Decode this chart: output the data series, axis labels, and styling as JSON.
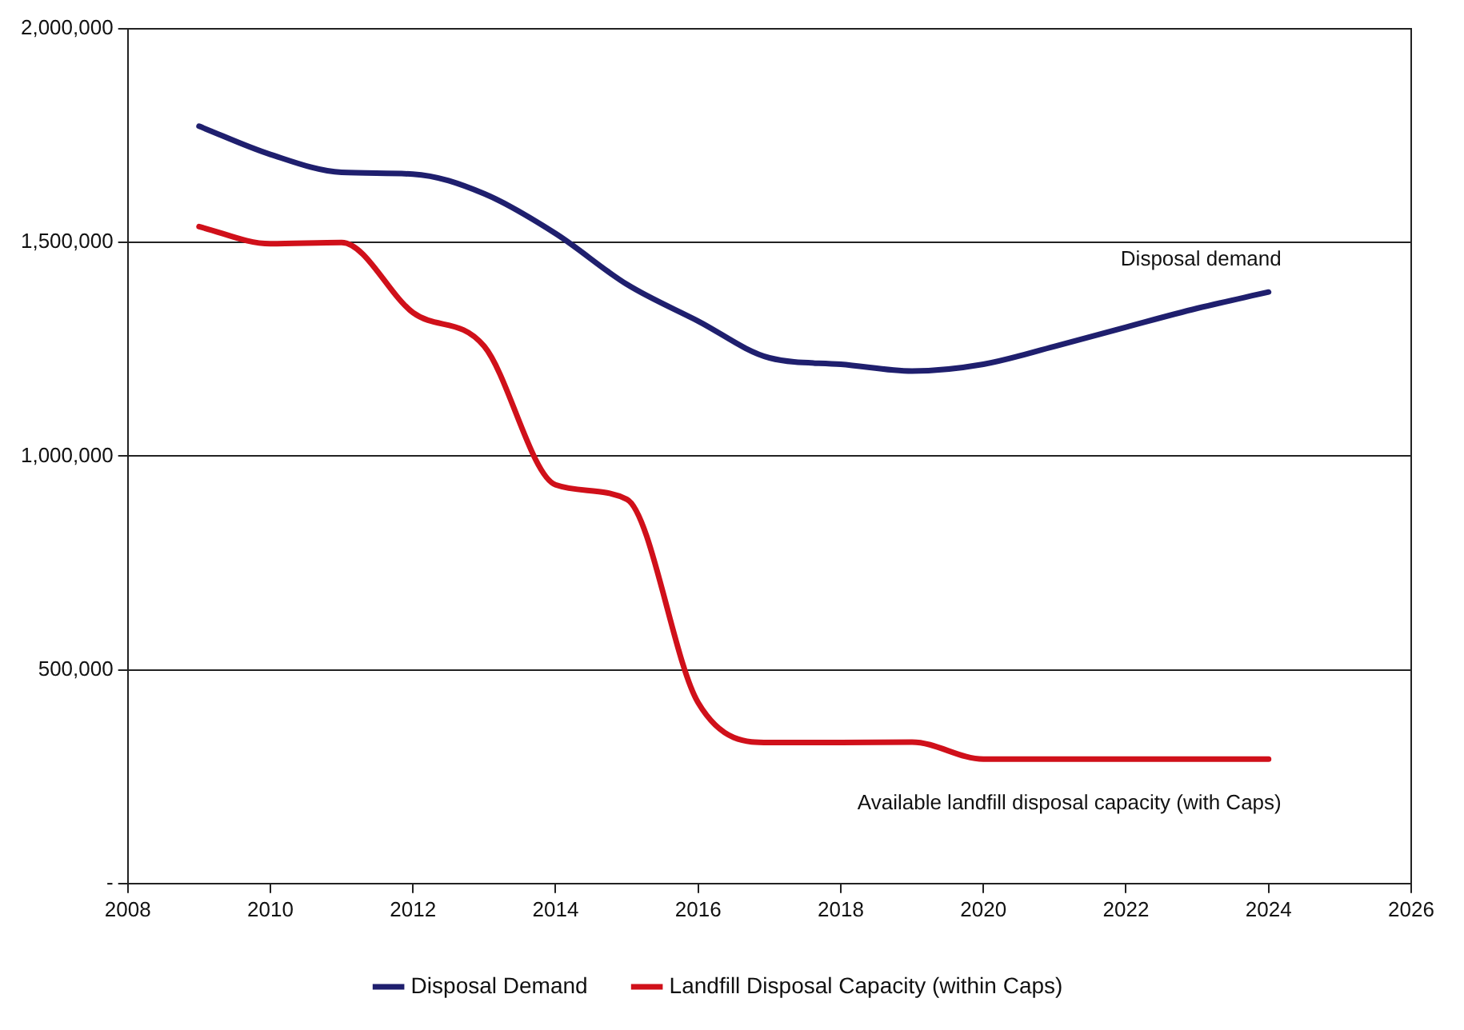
{
  "chart_data": {
    "type": "line",
    "x": [
      2009,
      2010,
      2011,
      2012,
      2013,
      2014,
      2015,
      2016,
      2017,
      2018,
      2019,
      2020,
      2021,
      2022,
      2023,
      2024
    ],
    "series": [
      {
        "name": "Disposal Demand",
        "color": "#1f1f6e",
        "values": [
          1772000,
          1706000,
          1664000,
          1660000,
          1614000,
          1521000,
          1402000,
          1316000,
          1230000,
          1215000,
          1199000,
          1215000,
          1257000,
          1302000,
          1346000,
          1384000
        ]
      },
      {
        "name": "Landfill Disposal Capacity (within Caps)",
        "color": "#d0101a",
        "values": [
          1537000,
          1497000,
          1500000,
          1336000,
          1257000,
          933000,
          899000,
          423000,
          330000,
          330000,
          331000,
          291000,
          291000,
          291000,
          291000,
          291000
        ]
      }
    ],
    "xlim": [
      2008,
      2026
    ],
    "xticks": [
      2008,
      2010,
      2012,
      2014,
      2016,
      2018,
      2020,
      2022,
      2024,
      2026
    ],
    "ylim": [
      0,
      2000000
    ],
    "yticks": [
      {
        "value": 0,
        "label": "-"
      },
      {
        "value": 500000,
        "label": "500,000"
      },
      {
        "value": 1000000,
        "label": "1,000,000"
      },
      {
        "value": 1500000,
        "label": "1,500,000"
      },
      {
        "value": 2000000,
        "label": "2,000,000"
      }
    ],
    "grid": "y",
    "legend": "bottom",
    "marker": "none",
    "line_style": "solid",
    "annotations": [
      "Disposal demand",
      "Available landfill disposal capacity (with Caps)"
    ]
  }
}
